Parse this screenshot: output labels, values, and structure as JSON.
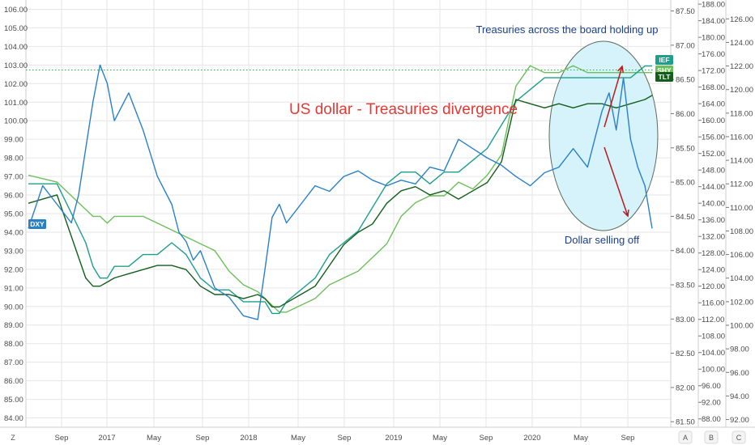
{
  "chart_data": {
    "type": "line",
    "title": "US dollar - Treasuries divergence",
    "annotations": [
      {
        "text": "Treasuries across the board holding up",
        "color": "#1a3f8a"
      },
      {
        "text": "Dollar selling off",
        "color": "#1a3f8a"
      }
    ],
    "colors": {
      "title": "#e53935",
      "DXY": "#2a80c8",
      "IEF": "#1e9e8c",
      "SHY": "#6cbf5a",
      "TLT": "#125e1a",
      "arrows": "#b71c1c",
      "ellipse_fill": "#d6f2fb",
      "ref_line": "#3aa35a",
      "grid": "#e6e6e6"
    },
    "x_axis": {
      "ticks": [
        "Sep",
        "2017",
        "May",
        "Sep",
        "2018",
        "May",
        "Sep",
        "2019",
        "May",
        "Sep",
        "2020",
        "May",
        "Sep"
      ],
      "range": [
        "2016-06",
        "2020-11"
      ]
    },
    "y_axis_left": {
      "ticks": [
        "106.00",
        "105.00",
        "104.00",
        "103.00",
        "102.00",
        "101.00",
        "100.00",
        "99.00",
        "98.00",
        "97.00",
        "96.00",
        "95.00",
        "94.00",
        "93.00",
        "92.00",
        "91.00",
        "90.00",
        "89.00",
        "88.00",
        "87.00",
        "86.00",
        "85.00",
        "84.00"
      ],
      "range": [
        83.5,
        106.5
      ]
    },
    "y_axis_right_1": {
      "ticks": [
        "87.50",
        "87.00",
        "86.50",
        "86.00",
        "85.50",
        "85.00",
        "84.50",
        "84.00",
        "83.50",
        "83.00",
        "82.50",
        "82.00",
        "81.50"
      ],
      "range": [
        81.42,
        87.66
      ]
    },
    "y_axis_right_2": {
      "ticks": [
        "188.00",
        "184.00",
        "180.00",
        "176.00",
        "172.00",
        "168.00",
        "164.00",
        "160.00",
        "156.00",
        "152.00",
        "148.00",
        "144.00",
        "140.00",
        "136.00",
        "132.00",
        "128.00",
        "124.00",
        "120.00",
        "116.00",
        "112.00",
        "108.00",
        "104.00",
        "100.00",
        "96.00",
        "92.00",
        "88.00"
      ],
      "range": [
        86,
        189
      ]
    },
    "y_axis_right_3": {
      "ticks": [
        "126.00",
        "124.00",
        "122.00",
        "120.00",
        "118.00",
        "116.00",
        "114.00",
        "112.00",
        "110.00",
        "108.00",
        "106.00",
        "104.00",
        "102.00",
        "100.00",
        "98.00",
        "96.00",
        "94.00",
        "92.00"
      ],
      "range": [
        91.35,
        127.6
      ]
    },
    "series": [
      {
        "name": "DXY",
        "axis": "left",
        "x": [
          0,
          0.1,
          0.2,
          0.3,
          0.35,
          0.4,
          0.45,
          0.5,
          0.55,
          0.6,
          0.7,
          0.8,
          0.9,
          1.0,
          1.05,
          1.1,
          1.15,
          1.2,
          1.3,
          1.4,
          1.5,
          1.6,
          1.65,
          1.7,
          1.75,
          1.8,
          1.9,
          2.0,
          2.1,
          2.2,
          2.3,
          2.4,
          2.5,
          2.6,
          2.7,
          2.8,
          2.9,
          3.0,
          3.1,
          3.2,
          3.3,
          3.4,
          3.5,
          3.6,
          3.7,
          3.8,
          3.9,
          4.0,
          4.05,
          4.1,
          4.15,
          4.2,
          4.25,
          4.3,
          4.35
        ],
        "values": [
          94.2,
          96.5,
          95.5,
          94.5,
          96.0,
          98.5,
          101.0,
          103.0,
          102.0,
          100.0,
          101.5,
          99.5,
          97.0,
          95.5,
          94.0,
          93.5,
          92.5,
          93.0,
          91.0,
          90.5,
          89.5,
          89.3,
          92.0,
          94.8,
          95.5,
          94.5,
          95.5,
          96.5,
          96.2,
          97.0,
          97.3,
          96.8,
          96.5,
          96.8,
          96.6,
          97.5,
          97.3,
          99.0,
          98.5,
          98.0,
          97.6,
          97.0,
          96.5,
          97.2,
          97.5,
          98.5,
          97.5,
          100.5,
          101.5,
          99.5,
          102.3,
          99.0,
          97.5,
          96.5,
          94.2
        ]
      },
      {
        "name": "IEF",
        "axis": "right_3",
        "x": [
          0,
          0.2,
          0.4,
          0.45,
          0.5,
          0.55,
          0.6,
          0.7,
          0.8,
          0.9,
          1.0,
          1.1,
          1.2,
          1.3,
          1.4,
          1.5,
          1.6,
          1.65,
          1.7,
          1.75,
          1.8,
          1.9,
          2.0,
          2.1,
          2.2,
          2.3,
          2.4,
          2.5,
          2.6,
          2.7,
          2.8,
          2.9,
          3.0,
          3.1,
          3.2,
          3.3,
          3.4,
          3.5,
          3.6,
          3.7,
          3.8,
          3.9,
          4.0,
          4.1,
          4.2,
          4.3,
          4.35
        ],
        "values": [
          112,
          112,
          107,
          105,
          104,
          104,
          105,
          105,
          106,
          106,
          107,
          106,
          104,
          103,
          103,
          102,
          102,
          102,
          101,
          101,
          102,
          103,
          104,
          106,
          107,
          108,
          110,
          112,
          113,
          113,
          112,
          113,
          113,
          114,
          115,
          117,
          119,
          120,
          121,
          121,
          121,
          121,
          121,
          121,
          121,
          122,
          122
        ]
      },
      {
        "name": "SHY",
        "axis": "right_1",
        "x": [
          0,
          0.2,
          0.4,
          0.45,
          0.5,
          0.55,
          0.6,
          0.7,
          0.8,
          0.9,
          1.0,
          1.1,
          1.2,
          1.3,
          1.4,
          1.5,
          1.6,
          1.65,
          1.7,
          1.75,
          1.8,
          1.9,
          2.0,
          2.1,
          2.2,
          2.3,
          2.4,
          2.5,
          2.6,
          2.7,
          2.8,
          2.9,
          3.0,
          3.1,
          3.2,
          3.3,
          3.4,
          3.5,
          3.6,
          3.7,
          3.8,
          3.9,
          4.0,
          4.1,
          4.2,
          4.3,
          4.35
        ],
        "values": [
          85.1,
          85.0,
          84.6,
          84.5,
          84.5,
          84.4,
          84.5,
          84.5,
          84.5,
          84.4,
          84.3,
          84.2,
          84.1,
          84.0,
          83.7,
          83.5,
          83.4,
          83.3,
          83.2,
          83.1,
          83.1,
          83.2,
          83.3,
          83.5,
          83.6,
          83.7,
          83.9,
          84.1,
          84.5,
          84.7,
          84.8,
          84.8,
          85.0,
          84.9,
          85.1,
          85.4,
          86.4,
          86.7,
          86.6,
          86.6,
          86.7,
          86.6,
          86.6,
          86.6,
          86.6,
          86.6,
          86.6
        ]
      },
      {
        "name": "TLT",
        "axis": "right_2",
        "x": [
          0,
          0.2,
          0.4,
          0.45,
          0.5,
          0.55,
          0.6,
          0.7,
          0.8,
          0.9,
          1.0,
          1.1,
          1.2,
          1.3,
          1.4,
          1.5,
          1.6,
          1.65,
          1.7,
          1.75,
          1.8,
          1.9,
          2.0,
          2.1,
          2.2,
          2.3,
          2.4,
          2.5,
          2.6,
          2.7,
          2.8,
          2.9,
          3.0,
          3.1,
          3.2,
          3.3,
          3.4,
          3.5,
          3.6,
          3.7,
          3.8,
          3.9,
          4.0,
          4.1,
          4.2,
          4.3,
          4.35
        ],
        "values": [
          140,
          142,
          122,
          120,
          120,
          121,
          122,
          123,
          124,
          125,
          125,
          124,
          120,
          118,
          118,
          117,
          118,
          117,
          115,
          115,
          116,
          118,
          120,
          125,
          130,
          133,
          135,
          140,
          143,
          144,
          142,
          143,
          141,
          143,
          145,
          150,
          165,
          164,
          163,
          164,
          163,
          164,
          164,
          163,
          164,
          165,
          166
        ]
      }
    ]
  },
  "legend_tags": [
    {
      "label": "DXY",
      "color": "#2a80c8"
    },
    {
      "label": "IEF",
      "color": "#1e9e8c"
    },
    {
      "label": "SHY",
      "color": "#6cbf5a"
    },
    {
      "label": "TLT",
      "color": "#125e1a"
    }
  ],
  "toolbar": {
    "left_button": "Z",
    "axis_buttons": [
      "A",
      "B",
      "C"
    ]
  }
}
